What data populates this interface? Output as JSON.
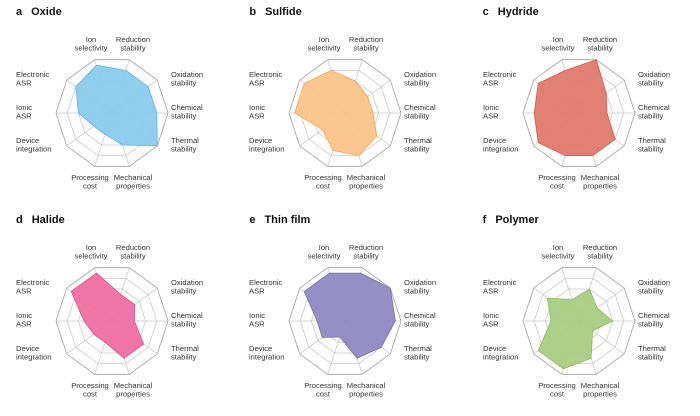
{
  "page": {
    "background": "#ffffff"
  },
  "axes": [
    {
      "label": "Ion selectivity",
      "lines": [
        "Ion",
        "selectivity"
      ]
    },
    {
      "label": "Reduction stability",
      "lines": [
        "Reduction",
        "stability"
      ]
    },
    {
      "label": "Oxidation stability",
      "lines": [
        "Oxidation",
        "stability"
      ]
    },
    {
      "label": "Chemical stability",
      "lines": [
        "Chemical",
        "stability"
      ]
    },
    {
      "label": "Thermal stability",
      "lines": [
        "Thermal",
        "stability"
      ]
    },
    {
      "label": "Mechanical properties",
      "lines": [
        "Mechanical",
        "properties"
      ]
    },
    {
      "label": "Processing cost",
      "lines": [
        "Processing",
        "cost"
      ]
    },
    {
      "label": "Device integration",
      "lines": [
        "Device",
        "integration"
      ]
    },
    {
      "label": "Ionic ASR",
      "lines": [
        "Ionic",
        "ASR"
      ]
    },
    {
      "label": "Electronic ASR",
      "lines": [
        "Electronic",
        "ASR"
      ]
    }
  ],
  "chart_data": [
    {
      "type": "radar",
      "panel": "a",
      "title": "Oxide",
      "fill": "#89cbec",
      "stroke": "#64b4dd",
      "scale_max": 5,
      "rings": 5,
      "grid": true,
      "categories": [
        "Ion selectivity",
        "Reduction stability",
        "Oxidation stability",
        "Chemical stability",
        "Thermal stability",
        "Mechanical properties",
        "Processing cost",
        "Device integration",
        "Ionic ASR",
        "Electronic ASR"
      ],
      "values": [
        4.5,
        4,
        4,
        4,
        5,
        3,
        2,
        2,
        3,
        4
      ]
    },
    {
      "type": "radar",
      "panel": "b",
      "title": "Sulfide",
      "fill": "#fac488",
      "stroke": "#f0a75a",
      "scale_max": 5,
      "rings": 5,
      "grid": true,
      "categories": [
        "Ion selectivity",
        "Reduction stability",
        "Oxidation stability",
        "Chemical stability",
        "Thermal stability",
        "Mechanical properties",
        "Processing cost",
        "Device integration",
        "Ionic ASR",
        "Electronic ASR"
      ],
      "values": [
        4,
        3,
        2.5,
        2.5,
        3.5,
        4,
        3.5,
        2.5,
        4.5,
        4.5
      ]
    },
    {
      "type": "radar",
      "panel": "c",
      "title": "Hydride",
      "fill": "#e07a6b",
      "stroke": "#cf5f50",
      "scale_max": 5,
      "rings": 5,
      "grid": true,
      "categories": [
        "Ion selectivity",
        "Reduction stability",
        "Oxidation stability",
        "Chemical stability",
        "Thermal stability",
        "Mechanical properties",
        "Processing cost",
        "Device integration",
        "Ionic ASR",
        "Electronic ASR"
      ],
      "values": [
        4,
        5,
        3,
        2.5,
        4,
        4,
        4,
        4.5,
        4,
        4.5
      ]
    },
    {
      "type": "radar",
      "panel": "d",
      "title": "Halide",
      "fill": "#ef6ea4",
      "stroke": "#e04f8c",
      "scale_max": 5,
      "rings": 5,
      "grid": true,
      "categories": [
        "Ion selectivity",
        "Reduction stability",
        "Oxidation stability",
        "Chemical stability",
        "Thermal stability",
        "Mechanical properties",
        "Processing cost",
        "Device integration",
        "Ionic ASR",
        "Electronic ASR"
      ],
      "values": [
        4.5,
        2.5,
        2.5,
        2,
        3.5,
        3.5,
        2,
        2,
        2.5,
        4.5
      ]
    },
    {
      "type": "radar",
      "panel": "e",
      "title": "Thin film",
      "fill": "#8f89c3",
      "stroke": "#7a73b3",
      "scale_max": 5,
      "rings": 5,
      "grid": true,
      "categories": [
        "Ion selectivity",
        "Reduction stability",
        "Oxidation stability",
        "Chemical stability",
        "Thermal stability",
        "Mechanical properties",
        "Processing cost",
        "Device integration",
        "Ionic ASR",
        "Electronic ASR"
      ],
      "values": [
        4.5,
        4.5,
        5,
        4.5,
        4,
        3.5,
        1.5,
        2.5,
        2.5,
        4.5
      ]
    },
    {
      "type": "radar",
      "panel": "f",
      "title": "Polymer",
      "fill": "#a8cd82",
      "stroke": "#8fba63",
      "scale_max": 5,
      "rings": 5,
      "grid": true,
      "categories": [
        "Ion selectivity",
        "Reduction stability",
        "Oxidation stability",
        "Chemical stability",
        "Thermal stability",
        "Mechanical properties",
        "Processing cost",
        "Device integration",
        "Ionic ASR",
        "Electronic ASR"
      ],
      "values": [
        2,
        3,
        2,
        3,
        1.5,
        3.5,
        4.5,
        4.5,
        2.5,
        3.5
      ]
    }
  ]
}
